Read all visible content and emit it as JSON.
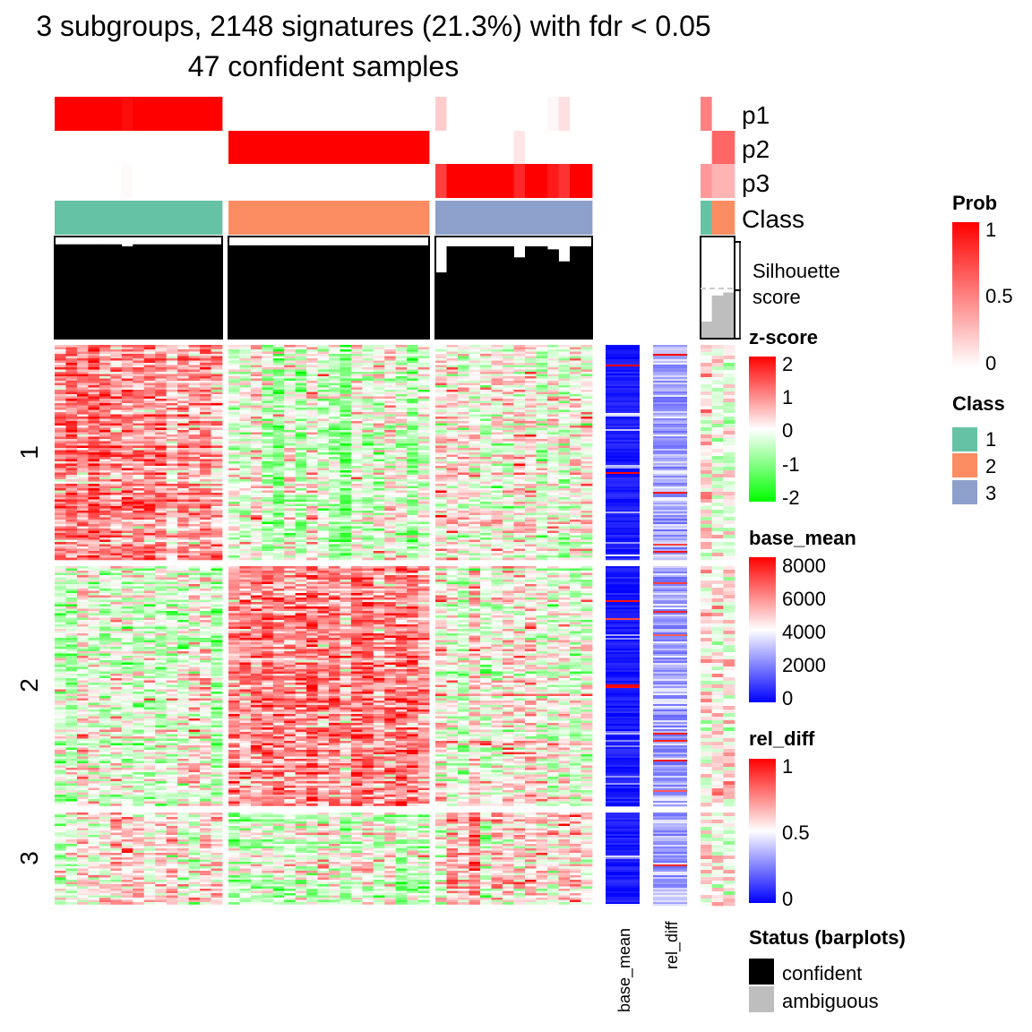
{
  "title_line1": "3 subgroups, 2148 signatures (21.3%) with fdr < 0.05",
  "title_line2": "47 confident samples",
  "chart_data": {
    "type": "heatmap",
    "n_signatures": 2148,
    "column_groups": [
      {
        "class": 1,
        "n_columns": 15,
        "prob": {
          "p1": [
            1,
            1,
            1,
            1,
            1,
            1,
            0.95,
            1,
            1,
            1,
            1,
            1,
            1,
            1,
            1
          ],
          "p2": [
            0,
            0,
            0,
            0,
            0,
            0,
            0,
            0,
            0,
            0,
            0,
            0,
            0,
            0,
            0
          ],
          "p3": [
            0,
            0,
            0,
            0,
            0,
            0,
            0.02,
            0,
            0,
            0,
            0,
            0,
            0,
            0,
            0
          ]
        },
        "silhouette": [
          0.94,
          0.94,
          0.94,
          0.94,
          0.94,
          0.94,
          0.92,
          0.94,
          0.94,
          0.94,
          0.94,
          0.94,
          0.94,
          0.94,
          0.94
        ]
      },
      {
        "class": 2,
        "n_columns": 18,
        "prob": {
          "p1": [
            0,
            0,
            0,
            0,
            0,
            0,
            0,
            0,
            0,
            0,
            0,
            0,
            0,
            0,
            0,
            0,
            0,
            0
          ],
          "p2": [
            1,
            1,
            1,
            1,
            1,
            1,
            1,
            1,
            1,
            1,
            1,
            1,
            1,
            1,
            1,
            1,
            1,
            1
          ],
          "p3": [
            0,
            0,
            0,
            0,
            0,
            0,
            0,
            0,
            0,
            0,
            0,
            0,
            0,
            0,
            0,
            0,
            0,
            0
          ]
        },
        "silhouette": [
          0.93,
          0.93,
          0.93,
          0.93,
          0.93,
          0.93,
          0.93,
          0.93,
          0.93,
          0.93,
          0.93,
          0.93,
          0.93,
          0.93,
          0.93,
          0.93,
          0.93,
          0.93
        ]
      },
      {
        "class": 3,
        "n_columns": 14,
        "prob": {
          "p1": [
            0.2,
            0,
            0,
            0,
            0,
            0,
            0,
            0,
            0,
            0,
            0.03,
            0.12,
            0,
            0
          ],
          "p2": [
            0,
            0,
            0,
            0,
            0,
            0,
            0,
            0.1,
            0,
            0,
            0,
            0,
            0,
            0
          ],
          "p3": [
            0.75,
            1,
            1,
            1,
            1,
            1,
            1,
            0.85,
            1,
            1,
            0.9,
            0.8,
            1,
            1
          ]
        },
        "silhouette": [
          0.66,
          0.92,
          0.92,
          0.92,
          0.92,
          0.92,
          0.92,
          0.81,
          0.92,
          0.92,
          0.89,
          0.77,
          0.92,
          0.92
        ]
      }
    ],
    "ambiguous_columns": {
      "class": [
        1,
        2,
        2
      ],
      "prob": {
        "p1": [
          0.5,
          0,
          0
        ],
        "p2": [
          0,
          0.6,
          0.6
        ],
        "p3": [
          0.4,
          0.3,
          0.3
        ]
      },
      "silhouette": [
        0.17,
        0.43,
        0.46
      ]
    },
    "row_groups": [
      {
        "label": "1",
        "n_rows": 845,
        "mean_zscore_by_class": [
          1.0,
          -0.3,
          -0.1
        ],
        "mean_zscore_ambiguous": [
          0.3,
          -0.1,
          -0.1
        ]
      },
      {
        "label": "2",
        "n_rows": 940,
        "mean_zscore_by_class": [
          -0.3,
          1.0,
          -0.1
        ],
        "mean_zscore_ambiguous": [
          0.1,
          0.3,
          0.2
        ]
      },
      {
        "label": "3",
        "n_rows": 363,
        "mean_zscore_by_class": [
          0.2,
          -0.4,
          0.4
        ],
        "mean_zscore_ambiguous": [
          0.1,
          0.1,
          0.0
        ]
      }
    ],
    "row_annotation_labels": [
      "base_mean",
      "rel_diff"
    ],
    "annotation_labels": [
      "p1",
      "p2",
      "p3",
      "Class"
    ],
    "silhouette_label": "Silhouette\nscore",
    "silhouette_threshold": 0.5,
    "class_colors": {
      "1": "#66C2A5",
      "2": "#FC8D62",
      "3": "#8DA0CB"
    },
    "status_colors": {
      "confident": "#000000",
      "ambiguous": "#BEBEBE"
    }
  },
  "legends": {
    "zscore": {
      "title": "z-score",
      "ticks": [
        "2",
        "1",
        "0",
        "-1",
        "-2"
      ],
      "colors": [
        "#FF0000",
        "#FFFFFF",
        "#00FF00"
      ]
    },
    "prob": {
      "title": "Prob",
      "ticks": [
        "1",
        "0.5",
        "0"
      ],
      "colors": [
        "#FF0000",
        "#FFFFFF"
      ]
    },
    "base_mean": {
      "title": "base_mean",
      "ticks": [
        "8000",
        "6000",
        "4000",
        "2000",
        "0"
      ],
      "colors": [
        "#FF0000",
        "#FFFFFF",
        "#0000FF"
      ]
    },
    "class": {
      "title": "Class",
      "items": [
        "1",
        "2",
        "3"
      ]
    },
    "rel_diff": {
      "title": "rel_diff",
      "ticks": [
        "1",
        "0.5",
        "0"
      ],
      "colors": [
        "#FF0000",
        "#FFFFFF",
        "#0000FF"
      ]
    },
    "status": {
      "title": "Status (barplots)",
      "items": [
        "confident",
        "ambiguous"
      ]
    }
  }
}
